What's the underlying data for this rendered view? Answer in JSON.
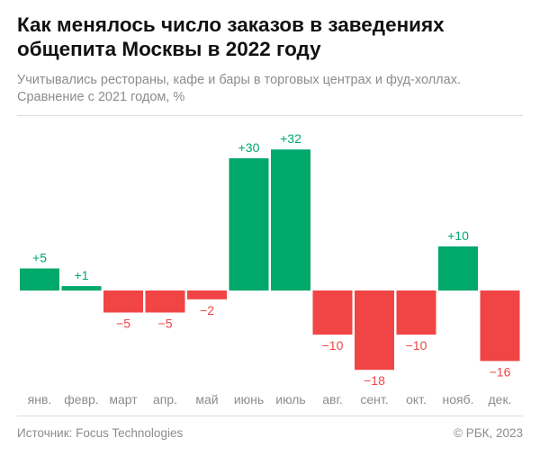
{
  "title": "Как менялось число заказов в заведениях общепита Москвы в 2022 году",
  "subtitle_line1": "Учитывались рестораны, кафе и бары в торговых центрах и фуд-холлах.",
  "subtitle_line2": "Сравнение с 2021 годом, %",
  "source": "Источник: Focus Technologies",
  "credit": "© РБК, 2023",
  "colors": {
    "positive": "#00a86b",
    "negative": "#f14444",
    "label_positive": "#00a86b",
    "label_negative": "#f14444",
    "tick": "#8c8c8c"
  },
  "chart_data": {
    "type": "bar",
    "categories": [
      "янв.",
      "февр.",
      "март",
      "апр.",
      "май",
      "июнь",
      "июль",
      "авг.",
      "сент.",
      "окт.",
      "нояб.",
      "дек."
    ],
    "values": [
      5,
      1,
      -5,
      -5,
      -2,
      30,
      32,
      -10,
      -18,
      -10,
      10,
      -16
    ],
    "value_labels": [
      "+5",
      "+1",
      "−5",
      "−5",
      "−2",
      "+30",
      "+32",
      "−10",
      "−18",
      "−10",
      "+10",
      "−16"
    ],
    "xlabel": "",
    "ylabel": "",
    "ylim": [
      -18,
      32
    ],
    "grid": false,
    "legend": "none"
  }
}
